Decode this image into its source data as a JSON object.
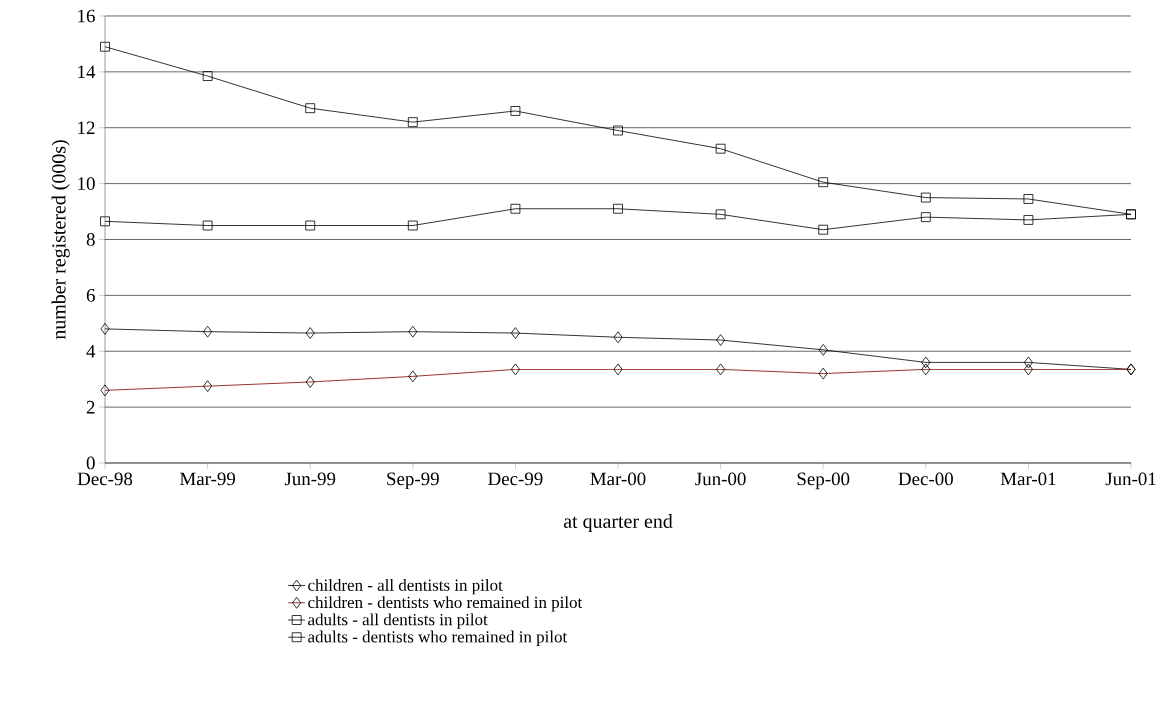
{
  "chart_data": {
    "type": "line",
    "xlabel": "at quarter end",
    "ylabel": "number registered (000s)",
    "categories": [
      "Dec-98",
      "Mar-99",
      "Jun-99",
      "Sep-99",
      "Dec-99",
      "Mar-00",
      "Jun-00",
      "Sep-00",
      "Dec-00",
      "Mar-01",
      "Jun-01"
    ],
    "series": [
      {
        "name": "children - all dentists in pilot",
        "color": "#000000",
        "marker": "diamond",
        "values": [
          4.8,
          4.7,
          4.65,
          4.7,
          4.65,
          4.5,
          4.4,
          4.05,
          3.6,
          3.6,
          3.35
        ]
      },
      {
        "name": "children - dentists who remained in pilot",
        "color": "#800000",
        "marker": "diamond",
        "values": [
          2.6,
          2.75,
          2.9,
          3.1,
          3.35,
          3.35,
          3.35,
          3.2,
          3.35,
          3.35,
          3.35
        ]
      },
      {
        "name": "adults - all dentists in pilot",
        "color": "#000000",
        "marker": "square",
        "values": [
          14.9,
          13.85,
          12.7,
          12.2,
          12.6,
          11.9,
          11.25,
          10.05,
          9.5,
          9.45,
          8.9
        ]
      },
      {
        "name": "adults - dentists who remained in pilot",
        "color": "#000000",
        "marker": "square",
        "values": [
          8.65,
          8.5,
          8.5,
          8.5,
          9.1,
          9.1,
          8.9,
          8.35,
          8.8,
          8.7,
          8.9
        ]
      }
    ],
    "ylim": [
      0,
      16
    ],
    "yticks": [
      0,
      2,
      4,
      6,
      8,
      10,
      12,
      14,
      16
    ],
    "grid": "y",
    "legend": "bottom",
    "line_style": "solid"
  }
}
